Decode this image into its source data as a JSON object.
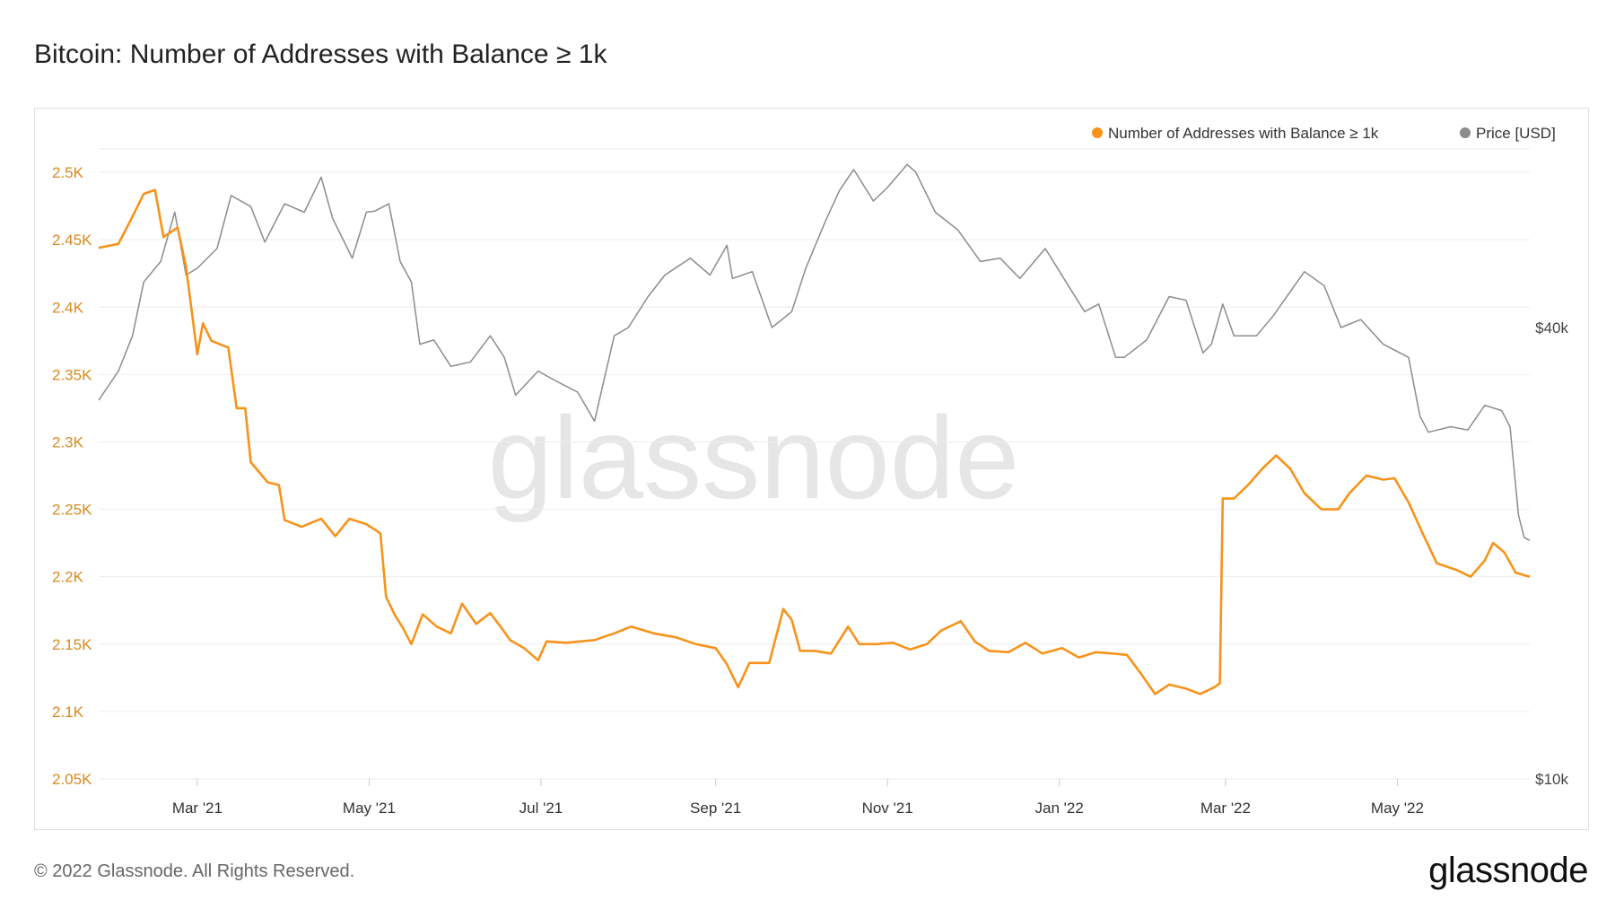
{
  "title": "Bitcoin: Number of Addresses with Balance ≥ 1k",
  "watermark": "glassnode",
  "footer": {
    "copyright": "© 2022 Glassnode. All Rights Reserved.",
    "logo_text": "glassnode"
  },
  "colors": {
    "addresses": "#f7931a",
    "price": "#8c8c8c",
    "axis_left": "#d98a1c",
    "axis_right": "#444444",
    "grid": "#eeeeee",
    "watermark": "#e6e6e6"
  },
  "chart_data": {
    "type": "line",
    "title": "Bitcoin: Number of Addresses with Balance ≥ 1k",
    "legend_position": "top-right",
    "grid": true,
    "x_axis": {
      "type": "date",
      "range": [
        "2021-01-25",
        "2022-06-17"
      ],
      "ticks": [
        {
          "date": "2021-03-01",
          "label": "Mar '21"
        },
        {
          "date": "2021-05-01",
          "label": "May '21"
        },
        {
          "date": "2021-07-01",
          "label": "Jul '21"
        },
        {
          "date": "2021-09-01",
          "label": "Sep '21"
        },
        {
          "date": "2021-11-01",
          "label": "Nov '21"
        },
        {
          "date": "2022-01-01",
          "label": "Jan '22"
        },
        {
          "date": "2022-03-01",
          "label": "Mar '22"
        },
        {
          "date": "2022-05-01",
          "label": "May '22"
        }
      ]
    },
    "y_left": {
      "range": [
        2050,
        2520
      ],
      "ticks": [
        {
          "value": 2050,
          "label": "2.05K"
        },
        {
          "value": 2100,
          "label": "2.1K"
        },
        {
          "value": 2150,
          "label": "2.15K"
        },
        {
          "value": 2200,
          "label": "2.2K"
        },
        {
          "value": 2250,
          "label": "2.25K"
        },
        {
          "value": 2300,
          "label": "2.3K"
        },
        {
          "value": 2350,
          "label": "2.35K"
        },
        {
          "value": 2400,
          "label": "2.4K"
        },
        {
          "value": 2450,
          "label": "2.45K"
        },
        {
          "value": 2500,
          "label": "2.5K"
        }
      ]
    },
    "y_right": {
      "scale": "log",
      "range": [
        10000,
        70000
      ],
      "ticks": [
        {
          "value": 10000,
          "label": "$10k"
        },
        {
          "value": 40000,
          "label": "$40k"
        }
      ]
    },
    "series": [
      {
        "name": "Number of Addresses with Balance ≥ 1k",
        "axis": "left",
        "points": [
          [
            "2021-01-25",
            2444
          ],
          [
            "2021-02-01",
            2447
          ],
          [
            "2021-02-05",
            2463
          ],
          [
            "2021-02-10",
            2484
          ],
          [
            "2021-02-14",
            2487
          ],
          [
            "2021-02-17",
            2452
          ],
          [
            "2021-02-22",
            2459
          ],
          [
            "2021-02-25",
            2430
          ],
          [
            "2021-03-01",
            2365
          ],
          [
            "2021-03-03",
            2388
          ],
          [
            "2021-03-06",
            2375
          ],
          [
            "2021-03-12",
            2370
          ],
          [
            "2021-03-15",
            2325
          ],
          [
            "2021-03-18",
            2325
          ],
          [
            "2021-03-20",
            2285
          ],
          [
            "2021-03-26",
            2270
          ],
          [
            "2021-03-30",
            2268
          ],
          [
            "2021-04-01",
            2242
          ],
          [
            "2021-04-07",
            2237
          ],
          [
            "2021-04-14",
            2243
          ],
          [
            "2021-04-19",
            2230
          ],
          [
            "2021-04-24",
            2243
          ],
          [
            "2021-04-30",
            2239
          ],
          [
            "2021-05-03",
            2235
          ],
          [
            "2021-05-05",
            2232
          ],
          [
            "2021-05-07",
            2185
          ],
          [
            "2021-05-10",
            2172
          ],
          [
            "2021-05-13",
            2162
          ],
          [
            "2021-05-16",
            2150
          ],
          [
            "2021-05-20",
            2172
          ],
          [
            "2021-05-25",
            2163
          ],
          [
            "2021-05-30",
            2158
          ],
          [
            "2021-06-03",
            2180
          ],
          [
            "2021-06-08",
            2165
          ],
          [
            "2021-06-13",
            2173
          ],
          [
            "2021-06-17",
            2162
          ],
          [
            "2021-06-20",
            2153
          ],
          [
            "2021-06-25",
            2147
          ],
          [
            "2021-06-30",
            2138
          ],
          [
            "2021-07-03",
            2152
          ],
          [
            "2021-07-10",
            2151
          ],
          [
            "2021-07-20",
            2153
          ],
          [
            "2021-07-27",
            2158
          ],
          [
            "2021-08-02",
            2163
          ],
          [
            "2021-08-10",
            2158
          ],
          [
            "2021-08-18",
            2155
          ],
          [
            "2021-08-25",
            2150
          ],
          [
            "2021-09-01",
            2147
          ],
          [
            "2021-09-05",
            2135
          ],
          [
            "2021-09-09",
            2118
          ],
          [
            "2021-09-13",
            2136
          ],
          [
            "2021-09-20",
            2136
          ],
          [
            "2021-09-25",
            2176
          ],
          [
            "2021-09-28",
            2168
          ],
          [
            "2021-10-01",
            2145
          ],
          [
            "2021-10-06",
            2145
          ],
          [
            "2021-10-12",
            2143
          ],
          [
            "2021-10-18",
            2163
          ],
          [
            "2021-10-22",
            2150
          ],
          [
            "2021-10-28",
            2150
          ],
          [
            "2021-11-03",
            2151
          ],
          [
            "2021-11-09",
            2146
          ],
          [
            "2021-11-15",
            2150
          ],
          [
            "2021-11-20",
            2160
          ],
          [
            "2021-11-27",
            2167
          ],
          [
            "2021-12-02",
            2152
          ],
          [
            "2021-12-07",
            2145
          ],
          [
            "2021-12-14",
            2144
          ],
          [
            "2021-12-20",
            2151
          ],
          [
            "2021-12-26",
            2143
          ],
          [
            "2022-01-02",
            2147
          ],
          [
            "2022-01-08",
            2140
          ],
          [
            "2022-01-14",
            2144
          ],
          [
            "2022-01-20",
            2143
          ],
          [
            "2022-01-25",
            2142
          ],
          [
            "2022-01-30",
            2128
          ],
          [
            "2022-02-04",
            2113
          ],
          [
            "2022-02-09",
            2120
          ],
          [
            "2022-02-15",
            2117
          ],
          [
            "2022-02-20",
            2113
          ],
          [
            "2022-02-25",
            2118
          ],
          [
            "2022-02-27",
            2121
          ],
          [
            "2022-02-28",
            2258
          ],
          [
            "2022-03-04",
            2258
          ],
          [
            "2022-03-09",
            2268
          ],
          [
            "2022-03-14",
            2280
          ],
          [
            "2022-03-19",
            2290
          ],
          [
            "2022-03-24",
            2280
          ],
          [
            "2022-03-29",
            2262
          ],
          [
            "2022-04-04",
            2250
          ],
          [
            "2022-04-10",
            2250
          ],
          [
            "2022-04-14",
            2262
          ],
          [
            "2022-04-20",
            2275
          ],
          [
            "2022-04-26",
            2272
          ],
          [
            "2022-04-30",
            2273
          ],
          [
            "2022-05-05",
            2255
          ],
          [
            "2022-05-10",
            2232
          ],
          [
            "2022-05-15",
            2210
          ],
          [
            "2022-05-22",
            2205
          ],
          [
            "2022-05-27",
            2200
          ],
          [
            "2022-06-01",
            2212
          ],
          [
            "2022-06-04",
            2225
          ],
          [
            "2022-06-08",
            2218
          ],
          [
            "2022-06-12",
            2203
          ],
          [
            "2022-06-17",
            2200
          ]
        ]
      },
      {
        "name": "Price [USD]",
        "axis": "right",
        "points": [
          [
            "2021-01-25",
            32000
          ],
          [
            "2021-02-01",
            35000
          ],
          [
            "2021-02-06",
            39000
          ],
          [
            "2021-02-10",
            46000
          ],
          [
            "2021-02-16",
            49000
          ],
          [
            "2021-02-21",
            57000
          ],
          [
            "2021-02-25",
            47000
          ],
          [
            "2021-03-01",
            48000
          ],
          [
            "2021-03-08",
            51000
          ],
          [
            "2021-03-13",
            60000
          ],
          [
            "2021-03-20",
            58000
          ],
          [
            "2021-03-25",
            52000
          ],
          [
            "2021-04-01",
            58500
          ],
          [
            "2021-04-08",
            57000
          ],
          [
            "2021-04-14",
            63500
          ],
          [
            "2021-04-18",
            56000
          ],
          [
            "2021-04-25",
            49500
          ],
          [
            "2021-04-30",
            57000
          ],
          [
            "2021-05-03",
            57200
          ],
          [
            "2021-05-08",
            58500
          ],
          [
            "2021-05-12",
            49000
          ],
          [
            "2021-05-16",
            46000
          ],
          [
            "2021-05-19",
            38000
          ],
          [
            "2021-05-24",
            38500
          ],
          [
            "2021-05-30",
            35500
          ],
          [
            "2021-06-06",
            36000
          ],
          [
            "2021-06-13",
            39000
          ],
          [
            "2021-06-18",
            36500
          ],
          [
            "2021-06-22",
            32500
          ],
          [
            "2021-06-30",
            35000
          ],
          [
            "2021-07-06",
            34000
          ],
          [
            "2021-07-14",
            32800
          ],
          [
            "2021-07-20",
            30000
          ],
          [
            "2021-07-27",
            39000
          ],
          [
            "2021-08-01",
            40000
          ],
          [
            "2021-08-08",
            44000
          ],
          [
            "2021-08-14",
            47000
          ],
          [
            "2021-08-23",
            49500
          ],
          [
            "2021-08-30",
            47000
          ],
          [
            "2021-09-05",
            51500
          ],
          [
            "2021-09-07",
            46500
          ],
          [
            "2021-09-14",
            47500
          ],
          [
            "2021-09-21",
            40000
          ],
          [
            "2021-09-28",
            42000
          ],
          [
            "2021-10-03",
            48000
          ],
          [
            "2021-10-10",
            55500
          ],
          [
            "2021-10-15",
            61000
          ],
          [
            "2021-10-20",
            65000
          ],
          [
            "2021-10-27",
            59000
          ],
          [
            "2021-11-01",
            61500
          ],
          [
            "2021-11-08",
            66000
          ],
          [
            "2021-11-11",
            64500
          ],
          [
            "2021-11-18",
            57000
          ],
          [
            "2021-11-26",
            54000
          ],
          [
            "2021-12-04",
            49000
          ],
          [
            "2021-12-11",
            49500
          ],
          [
            "2021-12-18",
            46500
          ],
          [
            "2021-12-27",
            51000
          ],
          [
            "2022-01-05",
            45000
          ],
          [
            "2022-01-10",
            42000
          ],
          [
            "2022-01-15",
            43000
          ],
          [
            "2022-01-21",
            36500
          ],
          [
            "2022-01-24",
            36500
          ],
          [
            "2022-02-01",
            38500
          ],
          [
            "2022-02-09",
            44000
          ],
          [
            "2022-02-15",
            43500
          ],
          [
            "2022-02-21",
            37000
          ],
          [
            "2022-02-24",
            38000
          ],
          [
            "2022-02-28",
            43000
          ],
          [
            "2022-03-04",
            39000
          ],
          [
            "2022-03-12",
            39000
          ],
          [
            "2022-03-18",
            41500
          ],
          [
            "2022-03-29",
            47500
          ],
          [
            "2022-04-05",
            45500
          ],
          [
            "2022-04-11",
            40000
          ],
          [
            "2022-04-18",
            41000
          ],
          [
            "2022-04-26",
            38000
          ],
          [
            "2022-05-05",
            36500
          ],
          [
            "2022-05-09",
            30500
          ],
          [
            "2022-05-12",
            29000
          ],
          [
            "2022-05-20",
            29500
          ],
          [
            "2022-05-26",
            29200
          ],
          [
            "2022-06-01",
            31500
          ],
          [
            "2022-06-07",
            31000
          ],
          [
            "2022-06-10",
            29500
          ],
          [
            "2022-06-13",
            22500
          ],
          [
            "2022-06-15",
            21000
          ],
          [
            "2022-06-17",
            20800
          ]
        ]
      }
    ]
  }
}
